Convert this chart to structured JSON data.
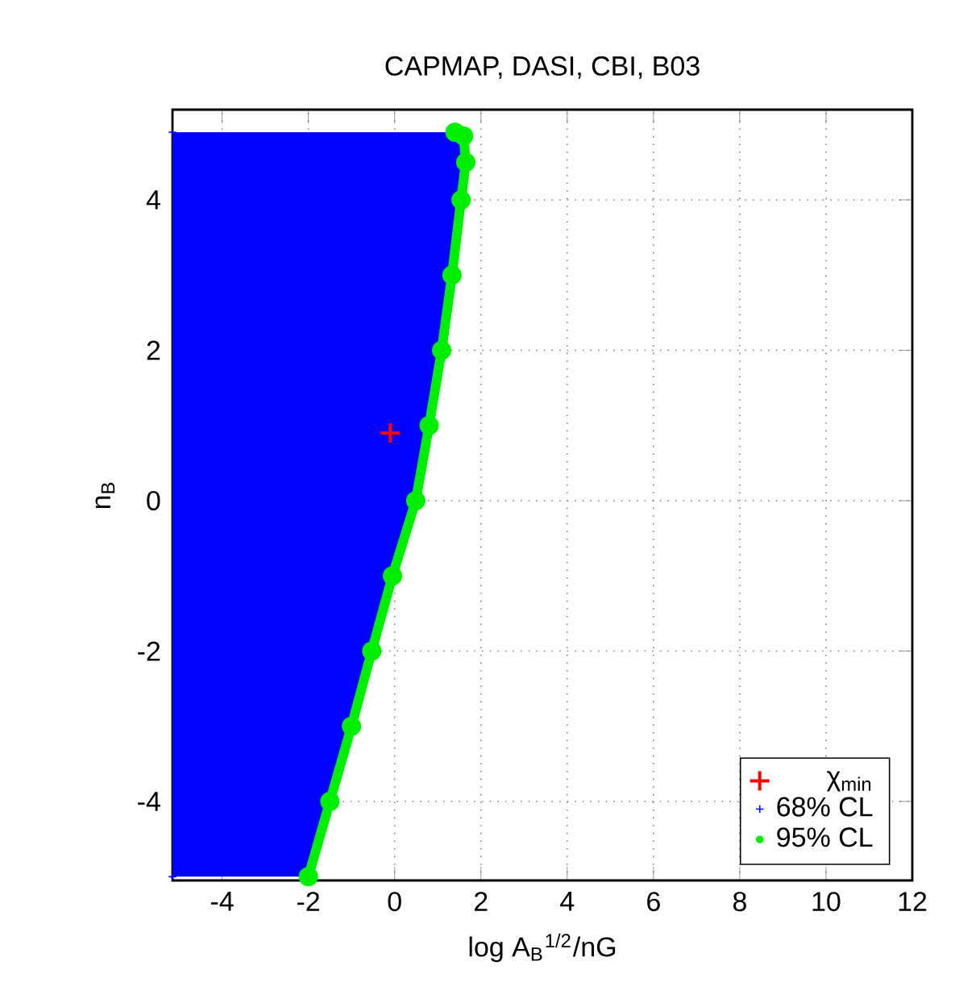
{
  "chart_data": {
    "type": "scatter",
    "title": "CAPMAP, DASI, CBI, B03",
    "xlabel": "log A$_{B}$$^{1/2}$/nG",
    "ylabel": "n$_{B}$",
    "xlim": [
      -5.15,
      12
    ],
    "ylim": [
      -5.05,
      5.2
    ],
    "xticks": [
      -4,
      -2,
      0,
      2,
      4,
      6,
      8,
      10,
      12
    ],
    "yticks": [
      -4,
      -2,
      0,
      2,
      4
    ],
    "grid": true,
    "legend": "bottom right",
    "series": [
      {
        "name": "χ$_{min}$",
        "marker": "cross",
        "color": "#ff0000",
        "x": [
          -0.1
        ],
        "values": [
          0.9
        ]
      },
      {
        "name": "68% CL",
        "type": "area",
        "marker": "cross",
        "color": "#0000ff",
        "x": [
          -5.15,
          -2.0,
          -1.5,
          -1.0,
          -0.53,
          -0.05,
          0.49,
          0.8,
          1.09,
          1.33,
          1.54,
          1.65,
          1.6,
          1.4,
          -5.15
        ],
        "values": [
          -5.0,
          -5.0,
          -4.0,
          -3.0,
          -2.0,
          -1.0,
          0.0,
          1.0,
          2.0,
          3.0,
          4.0,
          4.5,
          4.85,
          4.9,
          4.9
        ]
      },
      {
        "name": "95% CL",
        "type": "line",
        "marker": "circle",
        "color": "#00ee00",
        "x": [
          -2.0,
          -1.5,
          -1.0,
          -0.53,
          -0.05,
          0.49,
          0.8,
          1.09,
          1.33,
          1.54,
          1.65,
          1.6,
          1.4
        ],
        "values": [
          -5.0,
          -4.0,
          -3.0,
          -2.0,
          -1.0,
          0.0,
          1.0,
          2.0,
          3.0,
          4.0,
          4.5,
          4.85,
          4.9
        ]
      }
    ]
  }
}
